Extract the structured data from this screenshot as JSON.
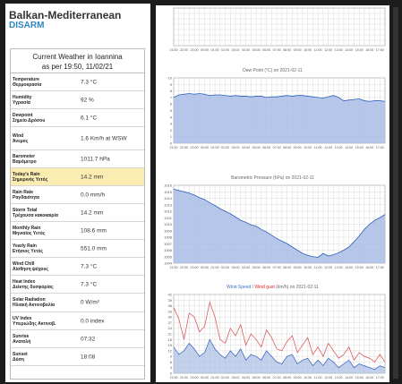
{
  "brand": {
    "name": "Balkan-Mediterranean",
    "sub": "DISARM"
  },
  "weather": {
    "title": "Current Weather in Ioannina",
    "subtitle": "as per 19:50, 11/02/21",
    "rows": [
      {
        "label": "Temperature",
        "greek": "Θερμοκρασία",
        "value": "7.3 °C"
      },
      {
        "label": "Humidity",
        "greek": "Υγρασία",
        "value": "92 %"
      },
      {
        "label": "Dewpoint",
        "greek": "Σημείο Δρόσου",
        "value": "6.1 °C"
      },
      {
        "label": "Wind",
        "greek": "Άνεμος",
        "value": "1.6 Km/h at WSW"
      },
      {
        "label": "Barometer",
        "greek": "Βαρόμετρο",
        "value": "1011.7 hPa"
      },
      {
        "label": "Today's Rain",
        "greek": "Σημερινός Υετός",
        "value": "14.2 mm"
      },
      {
        "label": "Rain Rate",
        "greek": "Ραγδαιότητα",
        "value": "0.0 mm/h"
      },
      {
        "label": "Storm Total",
        "greek": "Τρέχουσα κακοκαιρία",
        "value": "14.2 mm"
      },
      {
        "label": "Monthly Rain",
        "greek": "Μηνιαίος Υετός",
        "value": "108.6 mm"
      },
      {
        "label": "Yearly Rain",
        "greek": "Ετήσιος Υετός",
        "value": "551.0 mm"
      },
      {
        "label": "Wind Chill",
        "greek": "Αίσθηση ψύχους",
        "value": "7.3 °C"
      },
      {
        "label": "Heat Index",
        "greek": "Δείκτης δυσφορίας",
        "value": "7.3 °C"
      },
      {
        "label": "Solar Radiation",
        "greek": "Ηλιακή Ακτινοβολία",
        "value": "0 W/m²"
      },
      {
        "label": "UV Index",
        "greek": "Υπεριώδης Ακτινοβ.",
        "value": "0.0 index"
      },
      {
        "label": "Sunrise",
        "greek": "Ανατολή",
        "value": "07:32"
      },
      {
        "label": "Sunset",
        "greek": "Δύση",
        "value": "18:08"
      }
    ]
  },
  "time_ticks": [
    "21:00",
    "21:30",
    "22:00",
    "22:30",
    "23:00",
    "23:30",
    "00:00",
    "00:30",
    "01:00",
    "01:30",
    "02:00",
    "02:30",
    "03:00",
    "03:30",
    "04:00",
    "04:30",
    "05:00",
    "05:30",
    "06:00",
    "06:30",
    "07:00",
    "07:30",
    "08:00",
    "08:30",
    "09:00",
    "09:30",
    "10:00",
    "10:30",
    "11:00",
    "11:30",
    "12:00",
    "12:30",
    "13:00",
    "13:30",
    "14:00",
    "14:30",
    "15:00",
    "15:30",
    "16:00",
    "16:30",
    "17:00",
    "17:30"
  ],
  "colors": {
    "fill": "#a9bde6",
    "line_blue": "#2d5fb8",
    "line_red": "#d84a4a",
    "highlight": "#fbecb2",
    "brand_blue": "#2e86c1"
  },
  "chart_data": [
    {
      "type": "area",
      "title": "",
      "series": [
        {
          "values": []
        }
      ]
    },
    {
      "type": "area",
      "title": "Dew Point (°C) on 2021-02-11",
      "ylim": [
        0,
        10
      ],
      "yticks": [
        "10",
        "9",
        "8",
        "7",
        "6",
        "5",
        "4",
        "3",
        "2",
        "1",
        "0"
      ],
      "series": [
        {
          "values": [
            7.0,
            7.4,
            7.5,
            7.6,
            7.5,
            7.6,
            7.5,
            7.3,
            7.4,
            7.4,
            7.3,
            7.2,
            7.3,
            7.2,
            7.2,
            7.1,
            7.2,
            7.2,
            7.0,
            7.1,
            7.1,
            7.2,
            7.3,
            7.2,
            7.3,
            7.3,
            7.2,
            7.1,
            7.0,
            6.9,
            7.1,
            7.3,
            7.0,
            6.5,
            6.6,
            6.7,
            6.8,
            6.5,
            6.4,
            6.5,
            6.5,
            6.4
          ]
        }
      ]
    },
    {
      "type": "area",
      "title": "Barometric Pressure (hPa) on 2021-02-11",
      "ylim": [
        1004,
        1016
      ],
      "yticks": [
        "1016",
        "1015",
        "1014",
        "1013",
        "1012",
        "1011",
        "1010",
        "1009",
        "1008",
        "1007",
        "1006",
        "1005",
        "1004"
      ],
      "series": [
        {
          "values": [
            1015.4,
            1015.2,
            1015.0,
            1014.8,
            1014.5,
            1014.1,
            1013.8,
            1013.3,
            1012.9,
            1012.4,
            1012.0,
            1011.6,
            1011.1,
            1010.6,
            1010.3,
            1009.9,
            1009.7,
            1009.2,
            1008.8,
            1008.3,
            1007.8,
            1007.4,
            1007.0,
            1006.5,
            1006.0,
            1005.5,
            1005.2,
            1005.0,
            1004.9,
            1005.5,
            1005.1,
            1005.3,
            1005.6,
            1006.0,
            1006.5,
            1007.3,
            1008.2,
            1009.2,
            1010.0,
            1010.6,
            1011.0,
            1011.5
          ]
        }
      ]
    },
    {
      "type": "line",
      "title_a": "Wind Speed",
      "title_sep": " / ",
      "title_b": "Wind gust",
      "title_c": " (km/h) on 2021-02-11",
      "ylim": [
        0,
        42
      ],
      "yticks": [
        "42",
        "39",
        "36",
        "33",
        "30",
        "27",
        "24",
        "21",
        "18",
        "15",
        "12",
        "9",
        "6",
        "3",
        "0"
      ],
      "series": [
        {
          "name": "Wind gust",
          "values": [
            35,
            29,
            18,
            32,
            30,
            22,
            25,
            38,
            30,
            18,
            16,
            24,
            20,
            26,
            15,
            21,
            18,
            14,
            23,
            19,
            13,
            12,
            17,
            20,
            11,
            15,
            19,
            10,
            14,
            9,
            16,
            12,
            8,
            10,
            14,
            7,
            11,
            9,
            8,
            6,
            10,
            6
          ]
        },
        {
          "name": "Wind Speed",
          "values": [
            14,
            10,
            12,
            16,
            13,
            9,
            11,
            18,
            13,
            10,
            8,
            12,
            9,
            13,
            7,
            10,
            9,
            7,
            12,
            9,
            6,
            5,
            9,
            10,
            5,
            7,
            8,
            4,
            7,
            4,
            8,
            6,
            3,
            5,
            7,
            3,
            5,
            4,
            3,
            2,
            4,
            3
          ]
        }
      ]
    }
  ]
}
